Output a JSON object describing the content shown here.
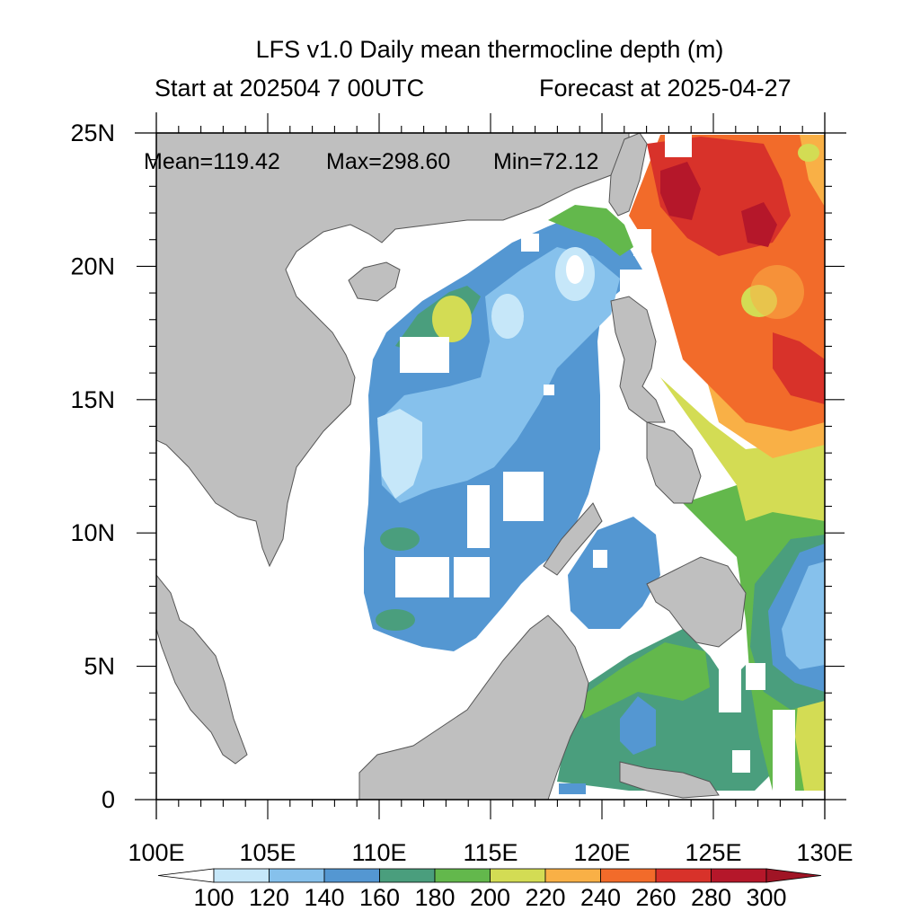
{
  "title": "LFS v1.0 Daily mean thermocline depth (m)",
  "subtitle_left": "Start at 202504 7 00UTC",
  "subtitle_right": "Forecast at 2025-04-27",
  "stats": {
    "mean_label": "Mean=119.42",
    "max_label": "Max=298.60",
    "min_label": "Min=72.12"
  },
  "map": {
    "lon_range": [
      100,
      130
    ],
    "lat_range": [
      0,
      25
    ],
    "lon_ticks": [
      {
        "value": 100,
        "label": "100E"
      },
      {
        "value": 105,
        "label": "105E"
      },
      {
        "value": 110,
        "label": "110E"
      },
      {
        "value": 115,
        "label": "115E"
      },
      {
        "value": 120,
        "label": "120E"
      },
      {
        "value": 125,
        "label": "125E"
      },
      {
        "value": 130,
        "label": "130E"
      }
    ],
    "lat_ticks": [
      {
        "value": 0,
        "label": "0"
      },
      {
        "value": 5,
        "label": "5N"
      },
      {
        "value": 10,
        "label": "10N"
      },
      {
        "value": 15,
        "label": "15N"
      },
      {
        "value": 20,
        "label": "20N"
      },
      {
        "value": 25,
        "label": "25N"
      }
    ]
  },
  "colorbar": {
    "levels": [
      "100",
      "120",
      "140",
      "160",
      "180",
      "200",
      "220",
      "240",
      "260",
      "280",
      "300"
    ],
    "colors": [
      "#ffffff",
      "#c6e7f9",
      "#86c1ec",
      "#5497d2",
      "#4a9e7d",
      "#63b84c",
      "#d3dc54",
      "#f9b046",
      "#f26b2a",
      "#d8322a",
      "#b5172a",
      "#a01425"
    ]
  },
  "colors": {
    "land": "#bfbfbf",
    "coast": "#555555",
    "no_data": "#ffffff"
  }
}
